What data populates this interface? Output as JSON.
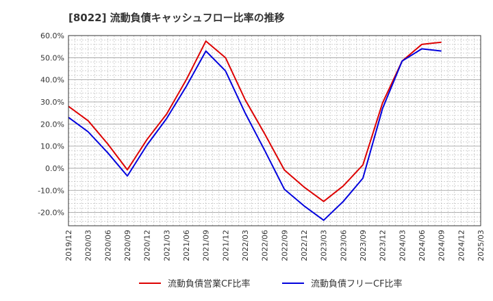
{
  "chart_data": {
    "type": "line",
    "title": "[8022]  流動負債キャッシュフロー比率の推移",
    "xlabel": "",
    "ylabel": "",
    "x": [
      "2019/12",
      "2020/03",
      "2020/06",
      "2020/09",
      "2020/12",
      "2021/03",
      "2021/06",
      "2021/09",
      "2021/12",
      "2022/03",
      "2022/06",
      "2022/09",
      "2022/12",
      "2023/03",
      "2023/06",
      "2023/09",
      "2023/12",
      "2024/03",
      "2024/06",
      "2024/09",
      "2024/12",
      "2025/03"
    ],
    "ylim": [
      -26,
      60
    ],
    "yticks": [
      60,
      50,
      40,
      30,
      20,
      10,
      0,
      -10,
      -20
    ],
    "ytick_labels": [
      "60.0%",
      "50.0%",
      "40.0%",
      "30.0%",
      "20.0%",
      "10.0%",
      "0.0%",
      "-10.0%",
      "-20.0%"
    ],
    "grid": true,
    "legend_position": "bottom",
    "series": [
      {
        "name": "流動負債営業CF比率",
        "color": "#dd0000",
        "values": [
          28.0,
          21.5,
          11.0,
          -0.7,
          13.0,
          24.5,
          40.0,
          57.5,
          50.0,
          31.0,
          15.5,
          -0.8,
          -8.5,
          -15.0,
          -8.0,
          1.5,
          29.5,
          48.5,
          56.0,
          57.0,
          null,
          null
        ]
      },
      {
        "name": "流動負債フリーCF比率",
        "color": "#0000dd",
        "values": [
          23.0,
          16.5,
          7.0,
          -3.5,
          10.5,
          22.5,
          37.0,
          53.0,
          44.0,
          25.0,
          8.0,
          -9.5,
          -17.0,
          -23.5,
          -15.0,
          -4.5,
          27.0,
          48.5,
          54.0,
          53.0,
          null,
          null
        ]
      }
    ]
  }
}
